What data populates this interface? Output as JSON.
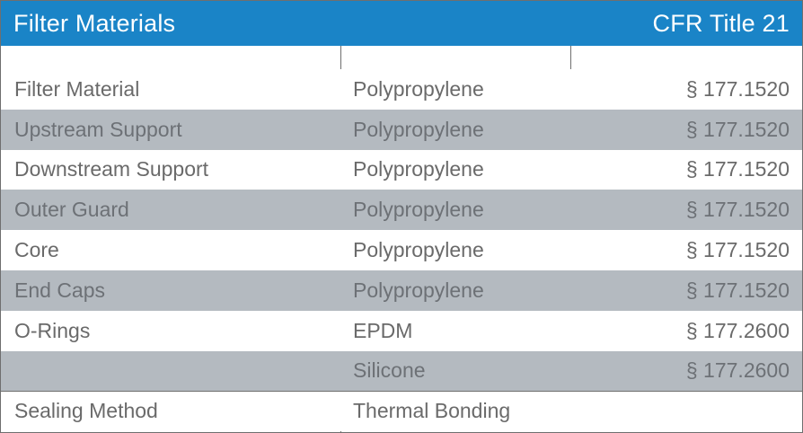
{
  "header": {
    "title": "Filter Materials",
    "right": "CFR Title 21",
    "color": "#1a84c7"
  },
  "rows": [
    {
      "component": "Filter Material",
      "material": "Polypropylene",
      "cfr": "§ 177.1520",
      "shaded": false
    },
    {
      "component": "Upstream Support",
      "material": "Polypropylene",
      "cfr": "§ 177.1520",
      "shaded": true
    },
    {
      "component": "Downstream Support",
      "material": "Polypropylene",
      "cfr": "§ 177.1520",
      "shaded": false
    },
    {
      "component": "Outer Guard",
      "material": "Polypropylene",
      "cfr": "§ 177.1520",
      "shaded": true
    },
    {
      "component": "Core",
      "material": "Polypropylene",
      "cfr": "§ 177.1520",
      "shaded": false
    },
    {
      "component": "End Caps",
      "material": "Polypropylene",
      "cfr": "§ 177.1520",
      "shaded": true
    },
    {
      "component": "O-Rings",
      "material": "EPDM",
      "cfr": "§ 177.2600",
      "shaded": false
    },
    {
      "component": "",
      "material": "Silicone",
      "cfr": "§ 177.2600",
      "shaded": true
    }
  ],
  "footer_row": {
    "component": "Sealing Method",
    "material": "Thermal Bonding"
  },
  "colors": {
    "shaded_row": "#b4bac0",
    "border": "#6f6f6f"
  }
}
